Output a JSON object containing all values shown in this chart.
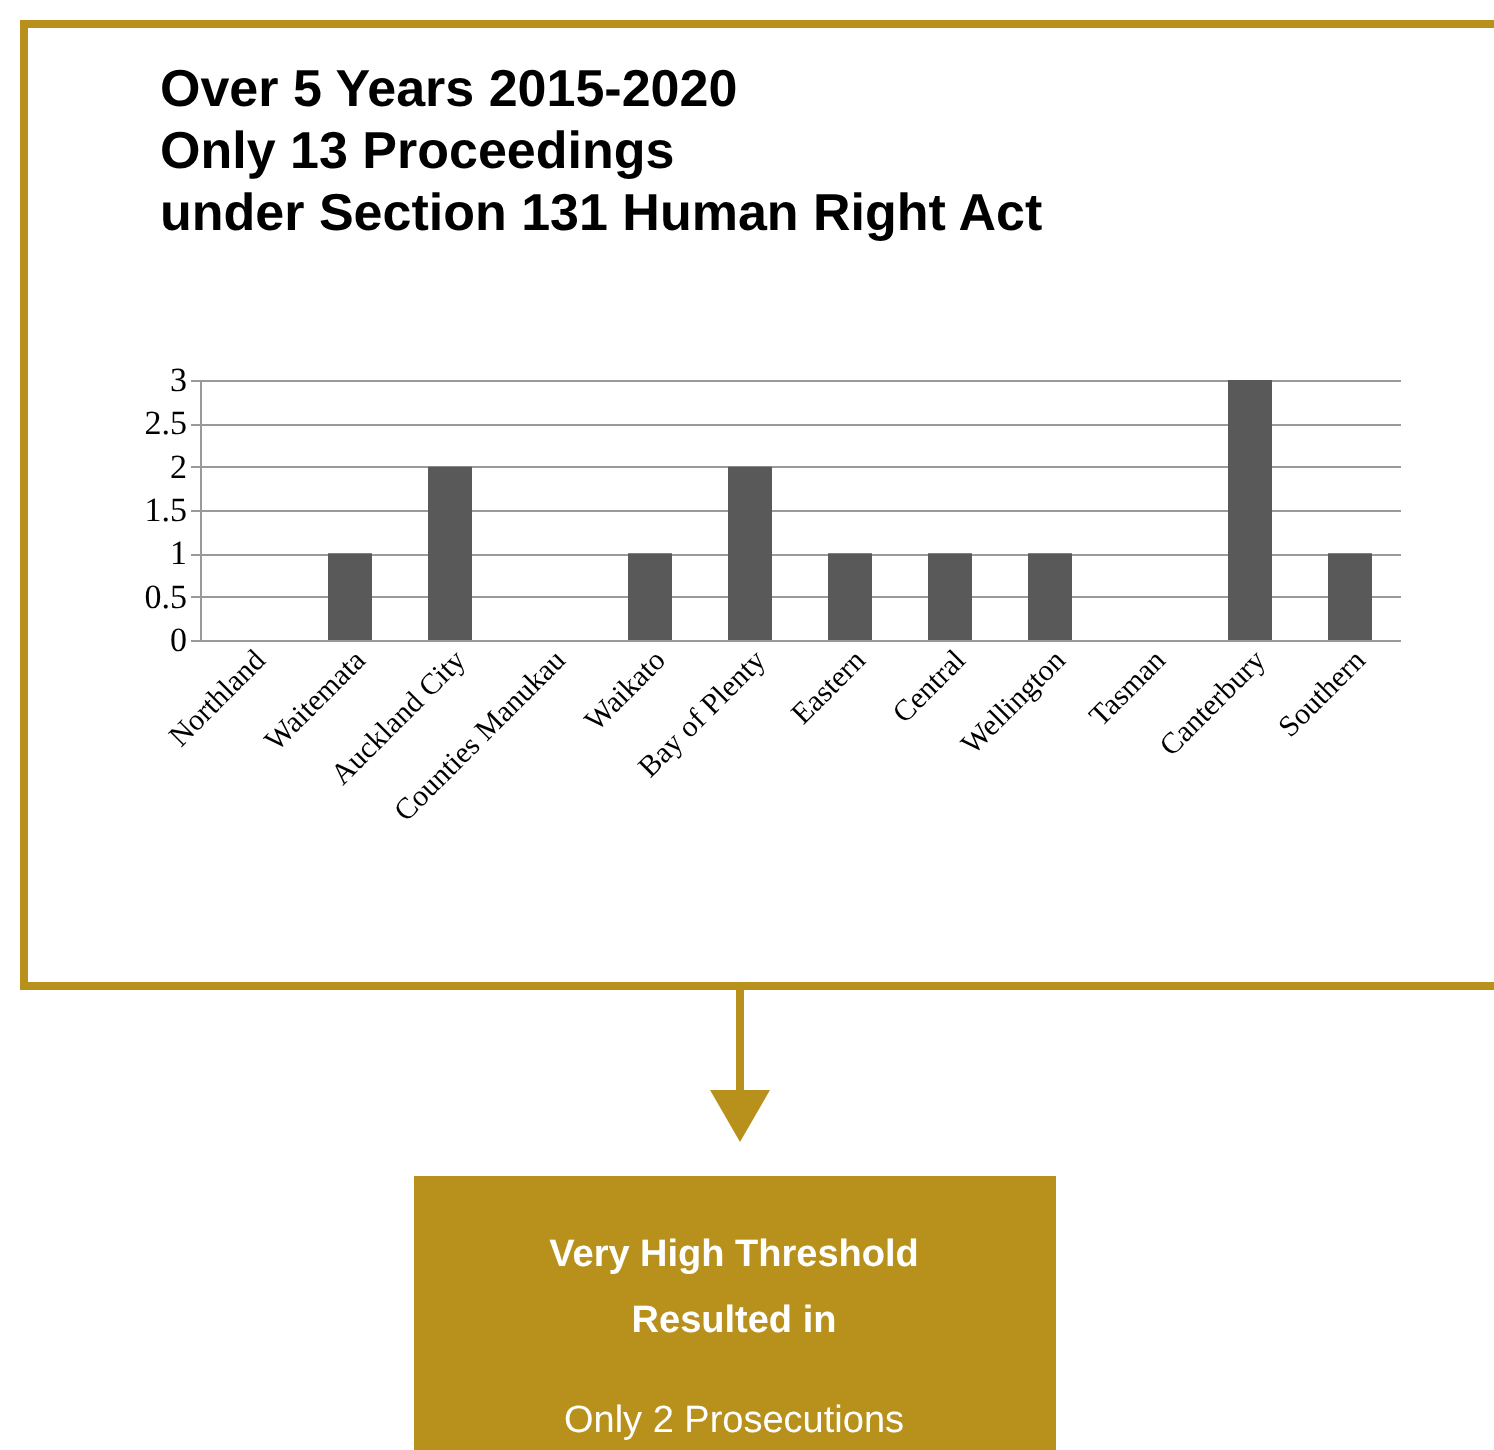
{
  "chart_data": {
    "type": "bar",
    "title": "Over 5 Years  2015-2020\nOnly 13 Proceedings\nunder Section 131 Human Right Act",
    "categories": [
      "Northland",
      "Waitemata",
      "Auckland City",
      "Counties Manukau",
      "Waikato",
      "Bay of Plenty",
      "Eastern",
      "Central",
      "Wellington",
      "Tasman",
      "Canterbury",
      "Southern"
    ],
    "values": [
      0,
      1,
      2,
      0,
      1,
      2,
      1,
      1,
      1,
      0,
      3,
      1
    ],
    "color": "#595959",
    "ylim": [
      0,
      3
    ],
    "yticks": [
      0,
      0.5,
      1,
      1.5,
      2,
      2.5,
      3
    ],
    "grid": "y",
    "annotations": [
      "Very High Threshold",
      "Resulted in",
      "Only 2 Prosecutions"
    ]
  }
}
